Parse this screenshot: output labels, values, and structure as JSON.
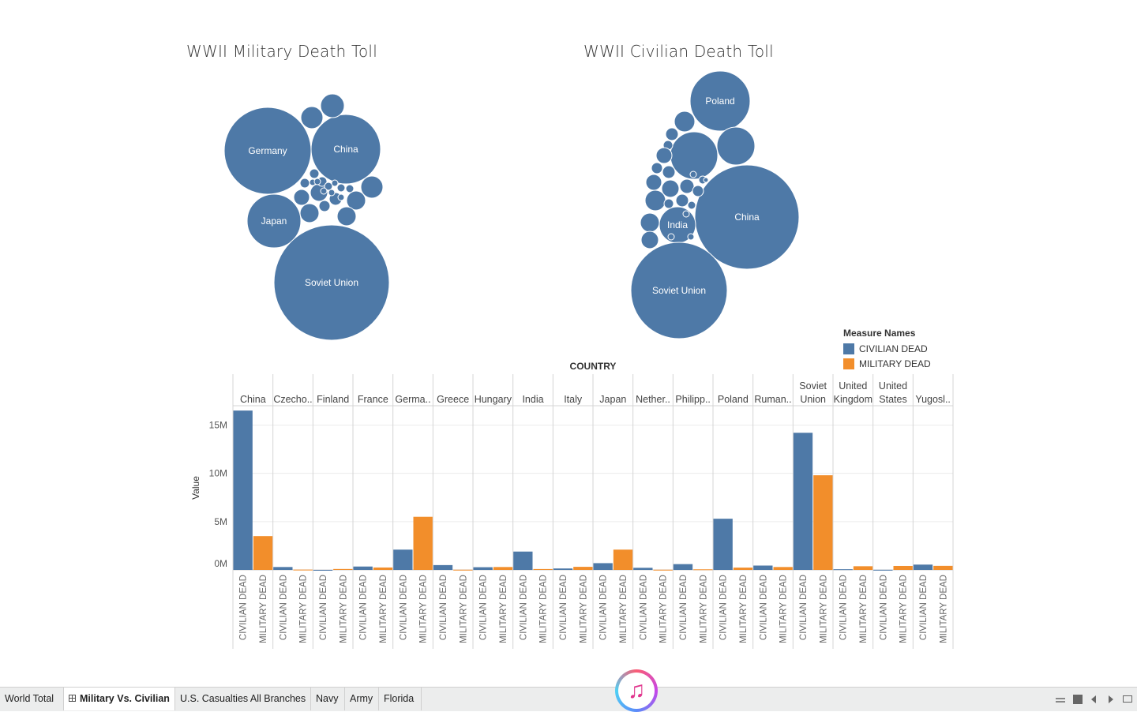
{
  "titles": {
    "military": "WWII Military Death Toll",
    "civilian": "WWII Civilian Death Toll"
  },
  "colors": {
    "civilian": "#4e79a7",
    "military": "#f28e2b"
  },
  "chart_data": [
    {
      "type": "bubble",
      "title": "WWII Military Death Toll",
      "labeled_bubbles": [
        "Germany",
        "China",
        "Japan",
        "Soviet Union"
      ]
    },
    {
      "type": "bubble",
      "title": "WWII Civilian Death Toll",
      "labeled_bubbles": [
        "Poland",
        "China",
        "India",
        "Soviet Union"
      ]
    },
    {
      "type": "bar",
      "title": "COUNTRY",
      "ylabel": "Value",
      "ylim": [
        0,
        17000000
      ],
      "yticks": [
        {
          "value": 0,
          "label": "0M"
        },
        {
          "value": 5000000,
          "label": "5M"
        },
        {
          "value": 10000000,
          "label": "10M"
        },
        {
          "value": 15000000,
          "label": "15M"
        }
      ],
      "column_header": "COUNTRY",
      "sub_categories": [
        "CIVILIAN DEAD",
        "MILITARY DEAD"
      ],
      "categories": [
        [
          "China"
        ],
        [
          "Czecho.."
        ],
        [
          "Finland"
        ],
        [
          "France"
        ],
        [
          "Germa.."
        ],
        [
          "Greece"
        ],
        [
          "Hungary"
        ],
        [
          "India"
        ],
        [
          "Italy"
        ],
        [
          "Japan"
        ],
        [
          "Nether.."
        ],
        [
          "Philipp.."
        ],
        [
          "Poland"
        ],
        [
          "Ruman.."
        ],
        [
          "Soviet",
          "Union"
        ],
        [
          "United",
          "Kingdom"
        ],
        [
          "United",
          "States"
        ],
        [
          "Yugosl.."
        ]
      ],
      "series": [
        {
          "name": "CIVILIAN DEAD",
          "values": [
            16500000,
            300000,
            2000,
            350000,
            2100000,
            500000,
            280000,
            1900000,
            150000,
            700000,
            220000,
            600000,
            5300000,
            450000,
            14200000,
            70000,
            12000,
            550000
          ]
        },
        {
          "name": "MILITARY DEAD",
          "values": [
            3500000,
            30000,
            95000,
            250000,
            5500000,
            20000,
            300000,
            90000,
            320000,
            2100000,
            20000,
            60000,
            240000,
            300000,
            9800000,
            380000,
            410000,
            420000
          ]
        }
      ],
      "legend": {
        "title": "Measure Names",
        "placement": "top-right",
        "items": [
          "CIVILIAN DEAD",
          "MILITARY DEAD"
        ]
      }
    }
  ],
  "tabs": [
    {
      "label": "World Total",
      "active": false
    },
    {
      "label": "Military Vs. Civilian",
      "active": true
    },
    {
      "label": "U.S. Casualties All Branches",
      "active": false
    },
    {
      "label": "Navy",
      "active": false
    },
    {
      "label": "Army",
      "active": false
    },
    {
      "label": "Florida",
      "active": false
    }
  ]
}
